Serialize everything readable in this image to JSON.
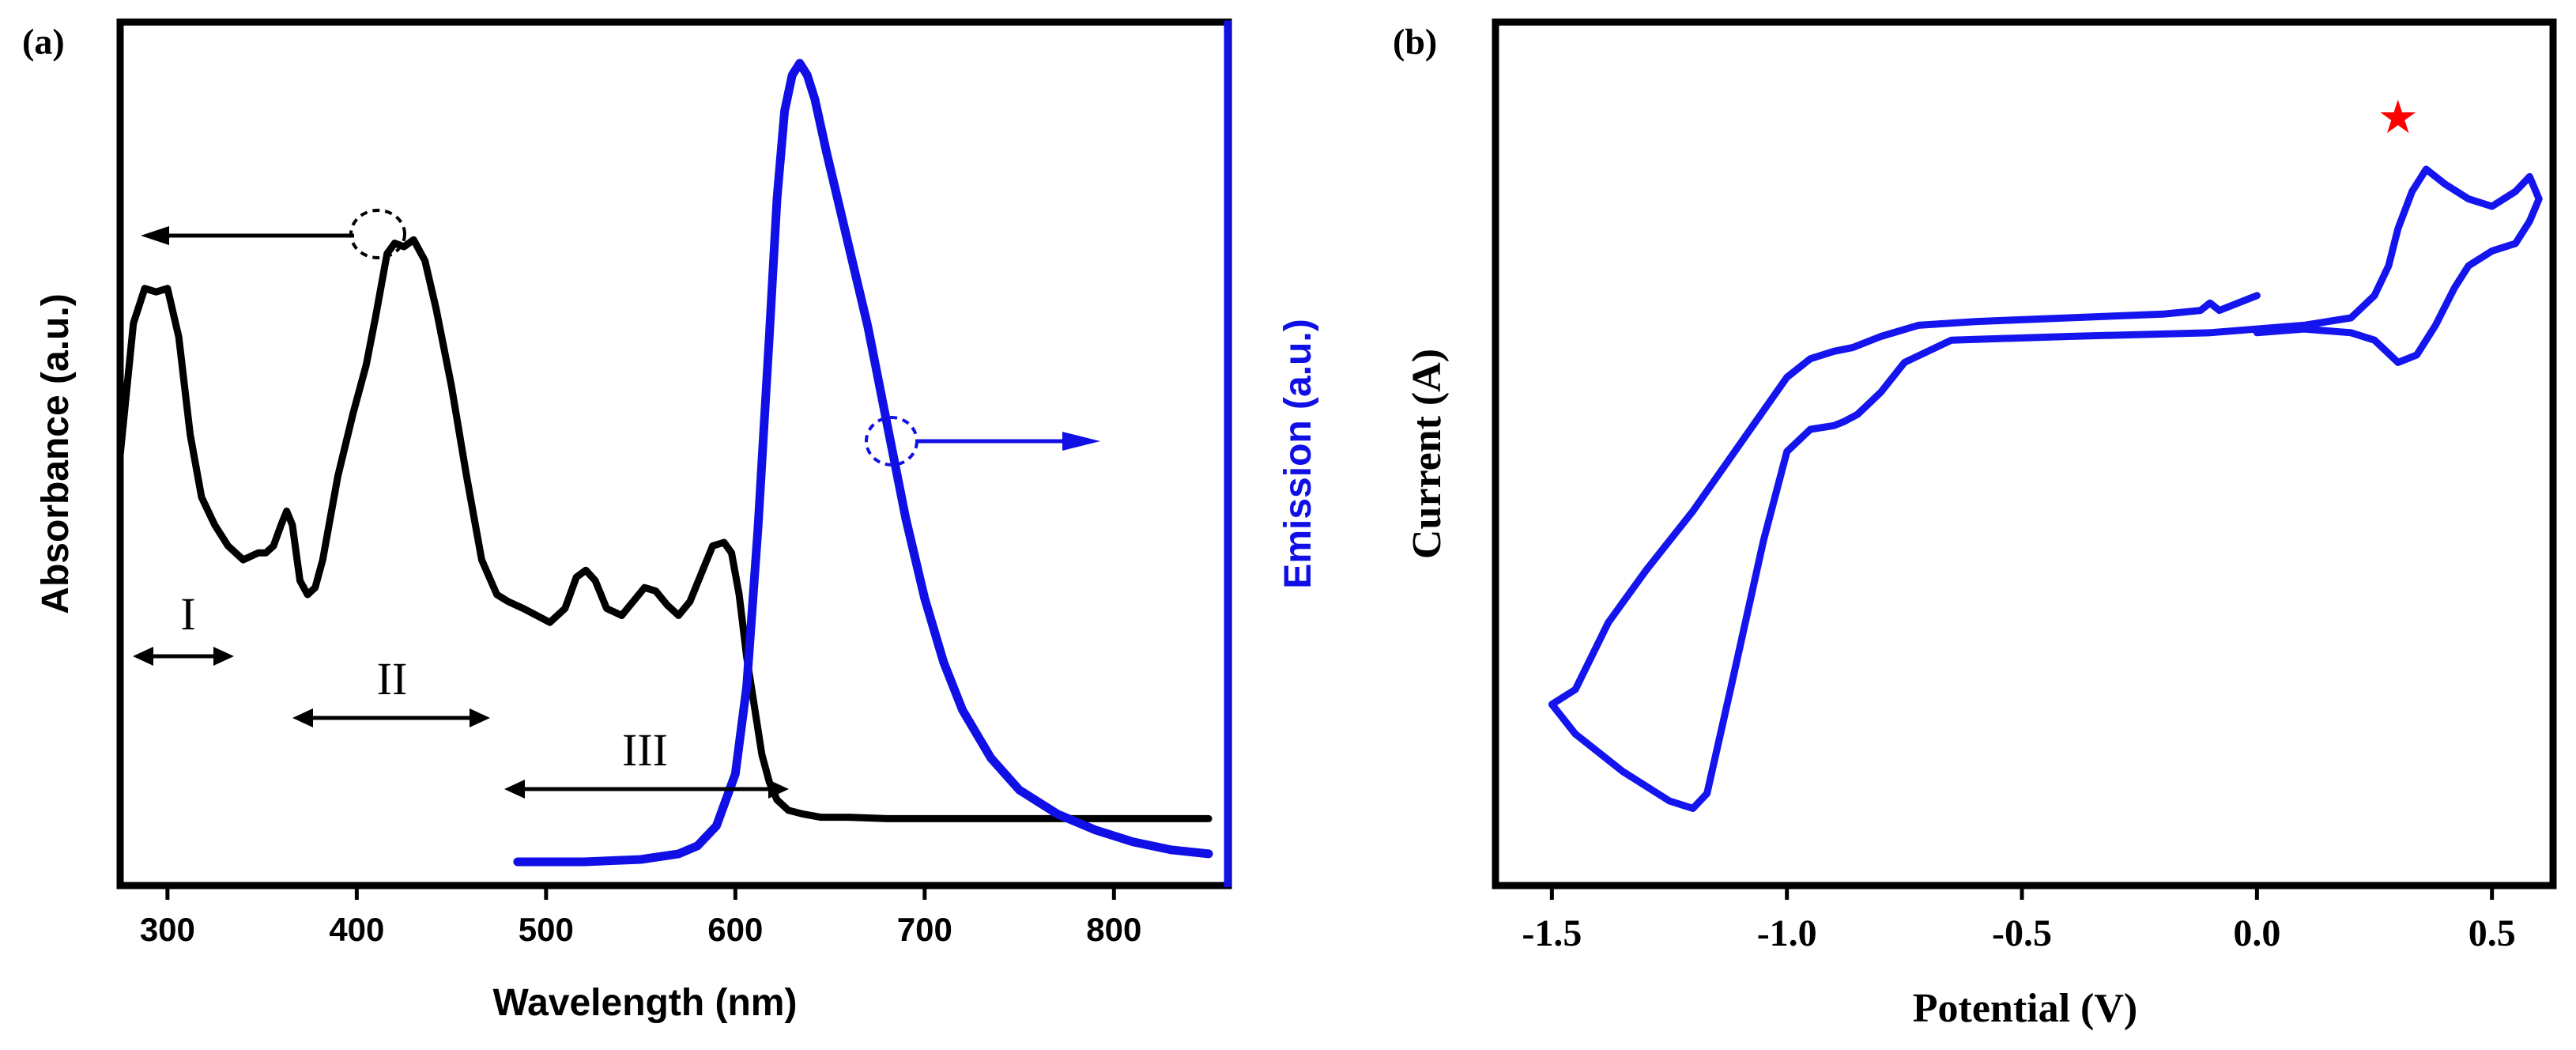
{
  "chart_data": [
    {
      "panel_label": "(a)",
      "type": "line",
      "xlabel": "Wavelength (nm)",
      "ylabel": "Absorbance (a.u.)",
      "y2label": "Emission (a.u.)",
      "xlim": [
        275,
        860
      ],
      "xticks": [
        300,
        400,
        500,
        600,
        700,
        800
      ],
      "grid": false,
      "colors": {
        "absorbance": "#000000",
        "emission": "#1010e6"
      },
      "series": [
        {
          "key": "absorbance",
          "axis": "left",
          "x": [
            275,
            282,
            288,
            294,
            300,
            306,
            312,
            318,
            325,
            332,
            340,
            348,
            352,
            356,
            360,
            363,
            366,
            370,
            374,
            378,
            382,
            390,
            398,
            405,
            410,
            416,
            420,
            425,
            430,
            436,
            442,
            450,
            458,
            466,
            474,
            480,
            488,
            495,
            502,
            510,
            516,
            521,
            526,
            532,
            540,
            546,
            552,
            558,
            564,
            570,
            576,
            582,
            588,
            594,
            598,
            602,
            606,
            610,
            614,
            618,
            622,
            628,
            635,
            645,
            660,
            680,
            720,
            760,
            800,
            850
          ],
          "y": [
            0.55,
            0.74,
            0.79,
            0.785,
            0.79,
            0.72,
            0.58,
            0.49,
            0.45,
            0.42,
            0.4,
            0.41,
            0.41,
            0.42,
            0.45,
            0.47,
            0.45,
            0.37,
            0.35,
            0.36,
            0.4,
            0.52,
            0.61,
            0.68,
            0.75,
            0.84,
            0.855,
            0.85,
            0.86,
            0.83,
            0.76,
            0.65,
            0.52,
            0.4,
            0.35,
            0.34,
            0.33,
            0.32,
            0.31,
            0.33,
            0.375,
            0.385,
            0.37,
            0.33,
            0.32,
            0.34,
            0.36,
            0.355,
            0.335,
            0.32,
            0.34,
            0.38,
            0.42,
            0.425,
            0.41,
            0.35,
            0.26,
            0.19,
            0.12,
            0.08,
            0.055,
            0.04,
            0.035,
            0.03,
            0.03,
            0.028,
            0.028,
            0.028,
            0.028,
            0.028
          ]
        },
        {
          "key": "emission",
          "axis": "right",
          "x": [
            485,
            520,
            550,
            570,
            580,
            590,
            600,
            606,
            612,
            618,
            622,
            626,
            630,
            634,
            638,
            642,
            648,
            655,
            662,
            670,
            680,
            690,
            700,
            710,
            720,
            735,
            750,
            770,
            790,
            810,
            830,
            850
          ],
          "y": [
            0.0,
            0.0,
            0.003,
            0.01,
            0.02,
            0.045,
            0.11,
            0.22,
            0.42,
            0.66,
            0.83,
            0.94,
            0.985,
            1.0,
            0.985,
            0.955,
            0.89,
            0.82,
            0.75,
            0.67,
            0.55,
            0.43,
            0.33,
            0.25,
            0.19,
            0.13,
            0.09,
            0.06,
            0.04,
            0.025,
            0.015,
            0.01
          ]
        }
      ],
      "annotations": [
        "I",
        "II",
        "III"
      ]
    },
    {
      "panel_label": "(b)",
      "type": "line",
      "xlabel": "Potential (V)",
      "ylabel": "Current (A)",
      "xlim": [
        -1.62,
        0.63
      ],
      "xticks": [
        "-1.5",
        "-1.0",
        "-0.5",
        "0.0",
        "0.5"
      ],
      "xtick_values": [
        -1.5,
        -1.0,
        -0.5,
        0.0,
        0.5
      ],
      "grid": false,
      "colors": {
        "cv": "#1414ee",
        "marker": "#ff0000"
      },
      "marker_symbol": "★",
      "marker_at": [
        0.3,
        0.97
      ],
      "series": [
        {
          "key": "cv",
          "x": [
            0.0,
            -0.08,
            -0.1,
            -0.12,
            -0.2,
            -0.4,
            -0.6,
            -0.72,
            -0.8,
            -0.86,
            -0.9,
            -0.95,
            -1.0,
            -1.1,
            -1.2,
            -1.3,
            -1.38,
            -1.45,
            -1.5,
            -1.45,
            -1.35,
            -1.25,
            -1.2,
            -1.17,
            -1.12,
            -1.05,
            -1.0,
            -0.95,
            -0.9,
            -0.88,
            -0.85,
            -0.8,
            -0.75,
            -0.65,
            -0.4,
            -0.1,
            0.1,
            0.2,
            0.25,
            0.28,
            0.3,
            0.33,
            0.36,
            0.4,
            0.45,
            0.5,
            0.55,
            0.58,
            0.6,
            0.58,
            0.55,
            0.5,
            0.45,
            0.42,
            0.38,
            0.34,
            0.3,
            0.25,
            0.2,
            0.1,
            0.0
          ],
          "y": [
            0.73,
            0.71,
            0.72,
            0.71,
            0.705,
            0.7,
            0.695,
            0.69,
            0.675,
            0.66,
            0.655,
            0.645,
            0.62,
            0.53,
            0.44,
            0.36,
            0.29,
            0.2,
            0.18,
            0.14,
            0.09,
            0.05,
            0.04,
            0.06,
            0.2,
            0.4,
            0.52,
            0.55,
            0.555,
            0.56,
            0.57,
            0.6,
            0.64,
            0.67,
            0.675,
            0.68,
            0.69,
            0.7,
            0.73,
            0.77,
            0.82,
            0.87,
            0.9,
            0.88,
            0.86,
            0.85,
            0.87,
            0.89,
            0.86,
            0.83,
            0.8,
            0.79,
            0.77,
            0.74,
            0.69,
            0.65,
            0.64,
            0.67,
            0.68,
            0.685,
            0.68
          ]
        }
      ]
    }
  ]
}
